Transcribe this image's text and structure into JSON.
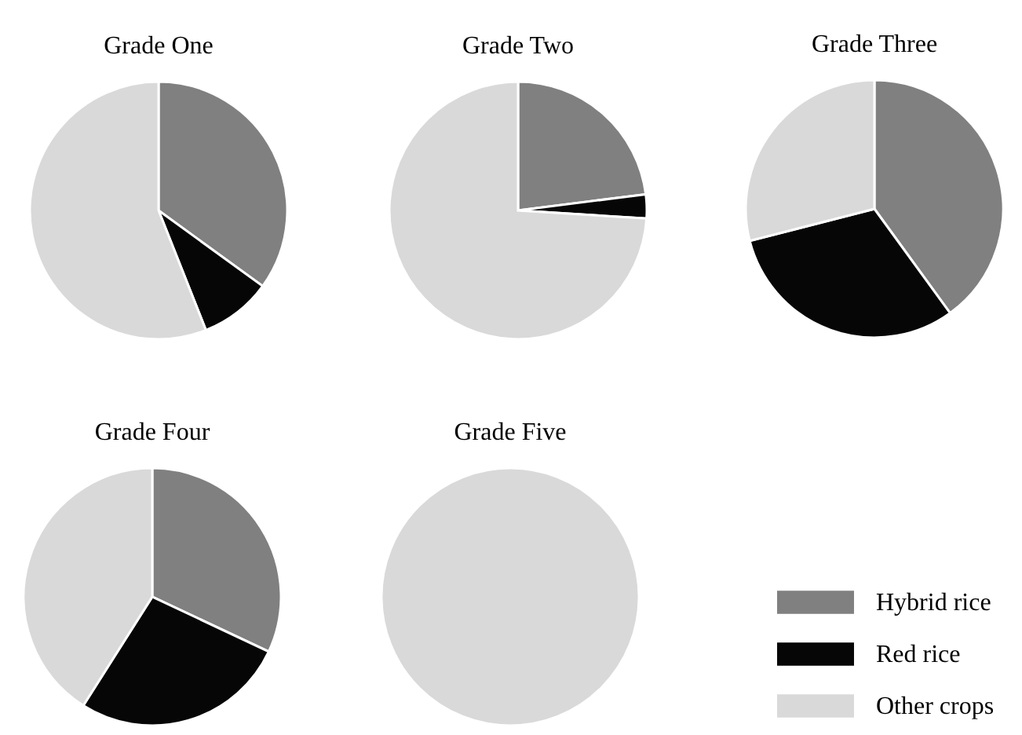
{
  "chart_data": [
    {
      "type": "pie",
      "title": "Grade One",
      "categories": [
        null,
        null,
        null
      ],
      "values": [
        35,
        9,
        56
      ],
      "colors": [
        "#808080",
        "#060606",
        "#d9d9d9"
      ]
    },
    {
      "type": "pie",
      "title": "Grade Two",
      "categories": [
        null,
        null,
        null
      ],
      "values": [
        23,
        3,
        74
      ],
      "colors": [
        "#808080",
        "#060606",
        "#d9d9d9"
      ]
    },
    {
      "type": "pie",
      "title": "Grade Three",
      "categories": [
        null,
        null,
        null
      ],
      "values": [
        40,
        31,
        29
      ],
      "colors": [
        "#808080",
        "#060606",
        "#d9d9d9"
      ]
    },
    {
      "type": "pie",
      "title": "Grade Four",
      "categories": [
        null,
        null,
        null
      ],
      "values": [
        32,
        27,
        41
      ],
      "colors": [
        "#808080",
        "#060606",
        "#d9d9d9"
      ]
    },
    {
      "type": "pie",
      "title": "Grade Five",
      "categories": [
        "Hybrid rice",
        "Red rice",
        "Other crops"
      ],
      "values": [
        0,
        0,
        100
      ],
      "colors": [
        "#808080",
        "#060606",
        "#d9d9d9"
      ],
      "legend": "right"
    }
  ]
}
